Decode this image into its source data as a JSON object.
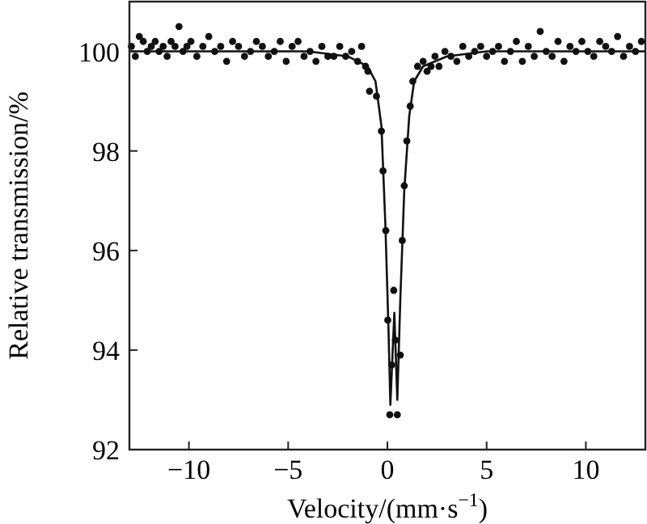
{
  "chart_data": {
    "type": "scatter",
    "xlabel": "Velocity/(mm·s$^{−1}$)",
    "ylabel": "Relative transmission/%",
    "xlim": [
      -13,
      13
    ],
    "ylim": [
      92,
      101
    ],
    "xticks": [
      {
        "value": -10,
        "label": "−10"
      },
      {
        "value": -5,
        "label": "−5"
      },
      0,
      5,
      10
    ],
    "yticks": [
      92,
      94,
      96,
      98,
      100
    ],
    "grid": false,
    "series": [
      {
        "color": "#111111",
        "marker": "circle",
        "x": [
          -12.9,
          -12.7,
          -12.5,
          -12.3,
          -12.1,
          -11.9,
          -11.7,
          -11.5,
          -11.3,
          -11.1,
          -10.9,
          -10.7,
          -10.5,
          -10.3,
          -10.1,
          -9.9,
          -9.6,
          -9.3,
          -9.0,
          -8.7,
          -8.4,
          -8.1,
          -7.8,
          -7.5,
          -7.2,
          -6.9,
          -6.6,
          -6.3,
          -6.0,
          -5.7,
          -5.4,
          -5.1,
          -4.8,
          -4.5,
          -4.2,
          -3.9,
          -3.6,
          -3.3,
          -3.0,
          -2.7,
          -2.4,
          -2.1,
          -1.8,
          -1.5,
          -1.3,
          -1.1,
          -0.98,
          -0.9,
          -0.55,
          -0.3,
          -0.22,
          -0.08,
          0.02,
          0.12,
          0.22,
          0.32,
          0.4,
          0.5,
          0.65,
          0.75,
          0.85,
          0.98,
          1.15,
          1.28,
          1.52,
          1.8,
          2.0,
          2.2,
          2.4,
          2.6,
          2.9,
          3.2,
          3.5,
          3.8,
          4.1,
          4.4,
          4.7,
          5.0,
          5.3,
          5.6,
          5.9,
          6.2,
          6.5,
          6.8,
          7.1,
          7.4,
          7.7,
          8.0,
          8.3,
          8.6,
          8.9,
          9.2,
          9.5,
          9.8,
          10.1,
          10.4,
          10.7,
          11.0,
          11.3,
          11.6,
          11.9,
          12.2,
          12.5,
          12.8
        ],
        "values": [
          100.1,
          99.9,
          100.3,
          100.2,
          100.0,
          100.1,
          100.2,
          100.0,
          100.1,
          99.9,
          100.2,
          100.1,
          100.5,
          100.0,
          100.1,
          100.2,
          99.9,
          100.1,
          100.3,
          100.0,
          100.1,
          99.8,
          100.2,
          100.1,
          99.9,
          100.0,
          100.2,
          100.1,
          99.9,
          100.0,
          100.2,
          99.8,
          100.1,
          100.2,
          99.9,
          100.0,
          99.8,
          100.1,
          99.9,
          99.9,
          100.1,
          99.9,
          100.0,
          99.8,
          100.1,
          99.7,
          99.6,
          99.2,
          99.1,
          98.4,
          97.6,
          96.4,
          94.6,
          92.7,
          93.7,
          95.2,
          94.2,
          92.7,
          93.9,
          96.2,
          97.3,
          98.2,
          98.9,
          99.4,
          99.7,
          99.8,
          99.6,
          99.7,
          99.9,
          99.7,
          100.0,
          99.9,
          99.8,
          100.1,
          99.9,
          100.0,
          100.1,
          99.9,
          100.0,
          100.1,
          99.8,
          100.0,
          100.2,
          99.8,
          100.1,
          99.9,
          100.4,
          100.0,
          99.9,
          100.2,
          99.8,
          100.1,
          100.0,
          100.2,
          100.0,
          99.9,
          100.2,
          100.1,
          100.0,
          100.3,
          99.9,
          100.1,
          100.0,
          100.2
        ]
      },
      {
        "type": "line",
        "color": "#111111",
        "line_style": "solid",
        "x": [
          -13,
          -4,
          -2,
          -1,
          -0.6,
          -0.3,
          -0.1,
          0.05,
          0.15,
          0.35,
          0.5,
          0.65,
          0.85,
          1.1,
          1.35,
          1.8,
          3,
          5,
          13
        ],
        "values": [
          100,
          100,
          99.9,
          99.7,
          99.4,
          98.5,
          96.5,
          94.5,
          92.9,
          94.75,
          93.0,
          95.0,
          97.2,
          98.7,
          99.4,
          99.7,
          99.9,
          100,
          100
        ]
      }
    ]
  }
}
